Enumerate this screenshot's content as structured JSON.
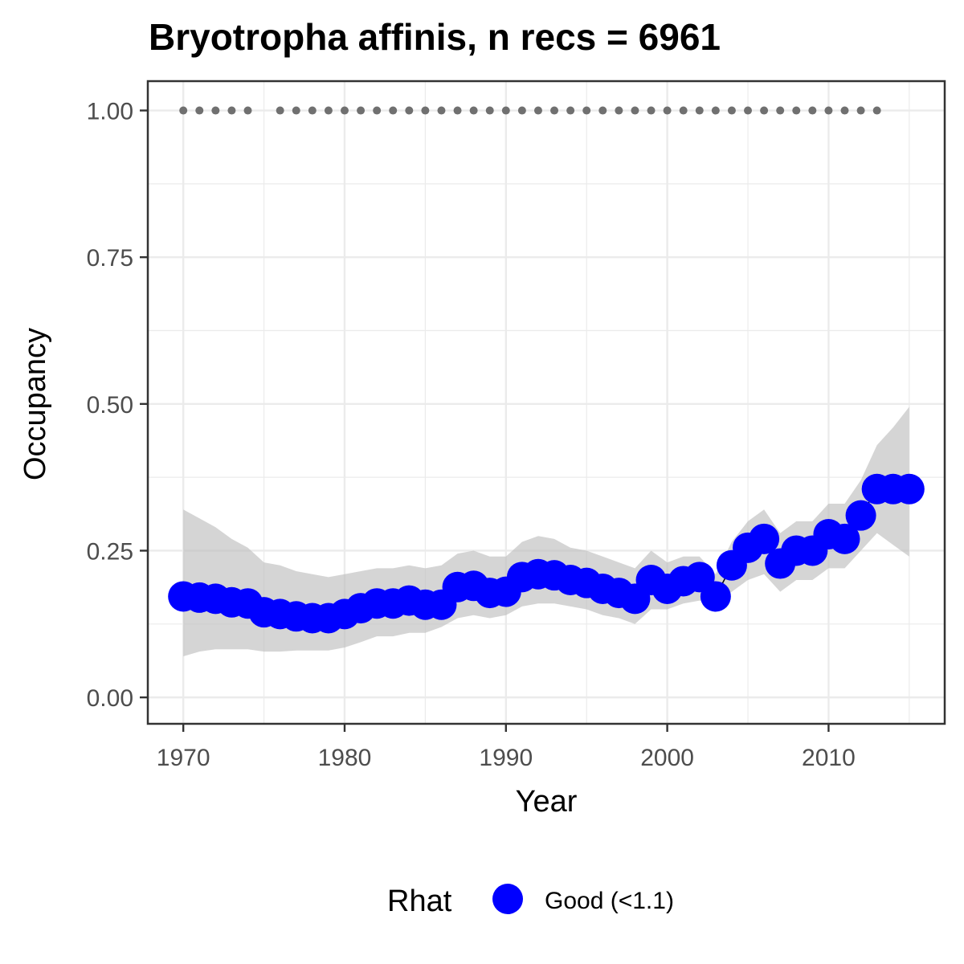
{
  "chart_data": {
    "type": "scatter",
    "title": "Bryotropha affinis, n recs = 6961",
    "xlabel": "Year",
    "ylabel": "Occupancy",
    "xlim": [
      1967.8,
      2017.2
    ],
    "ylim": [
      -0.045,
      1.05
    ],
    "x_ticks": [
      1970,
      1980,
      1990,
      2000,
      2010
    ],
    "x_tick_labels": [
      "1970",
      "1980",
      "1990",
      "2000",
      "2010"
    ],
    "y_ticks": [
      0,
      0.25,
      0.5,
      0.75,
      1.0
    ],
    "y_tick_labels": [
      "0.00",
      "0.25",
      "0.50",
      "0.75",
      "1.00"
    ],
    "grid": true,
    "legend": {
      "title": "Rhat",
      "placement": "bottom",
      "entries": [
        {
          "label": "Good (<1.1)",
          "color": "#0000ff"
        }
      ]
    },
    "colors": {
      "points": "#0000ff",
      "ribbon": "#bebebe",
      "record_dots": "#707070",
      "grid": "#ebebeb",
      "panel_border": "#333333"
    },
    "series": [
      {
        "x": [
          1970,
          1971,
          1972,
          1973,
          1974,
          1975,
          1976,
          1977,
          1978,
          1979,
          1980,
          1981,
          1982,
          1983,
          1984,
          1985,
          1986,
          1987,
          1988,
          1989,
          1990,
          1991,
          1992,
          1993,
          1994,
          1995,
          1996,
          1997,
          1998,
          1999,
          2000,
          2001,
          2002,
          2003,
          2004,
          2005,
          2006,
          2007,
          2008,
          2009,
          2010,
          2011,
          2012,
          2013,
          2014,
          2015
        ],
        "y": [
          0.172,
          0.17,
          0.168,
          0.162,
          0.16,
          0.145,
          0.142,
          0.138,
          0.135,
          0.135,
          0.142,
          0.152,
          0.16,
          0.16,
          0.165,
          0.158,
          0.158,
          0.188,
          0.19,
          0.178,
          0.18,
          0.205,
          0.21,
          0.208,
          0.2,
          0.195,
          0.185,
          0.178,
          0.168,
          0.2,
          0.185,
          0.198,
          0.205,
          0.172,
          0.225,
          0.255,
          0.27,
          0.228,
          0.25,
          0.25,
          0.278,
          0.27,
          0.31,
          0.355,
          0.355,
          0.355
        ],
        "lower": [
          0.07,
          0.078,
          0.082,
          0.082,
          0.082,
          0.078,
          0.078,
          0.08,
          0.08,
          0.08,
          0.085,
          0.094,
          0.104,
          0.104,
          0.11,
          0.11,
          0.12,
          0.135,
          0.14,
          0.135,
          0.14,
          0.155,
          0.16,
          0.16,
          0.155,
          0.15,
          0.14,
          0.135,
          0.125,
          0.15,
          0.15,
          0.16,
          0.165,
          0.155,
          0.18,
          0.2,
          0.21,
          0.18,
          0.2,
          0.2,
          0.22,
          0.22,
          0.25,
          0.28,
          0.26,
          0.24
        ],
        "upper": [
          0.32,
          0.305,
          0.29,
          0.27,
          0.255,
          0.23,
          0.225,
          0.215,
          0.21,
          0.205,
          0.21,
          0.215,
          0.22,
          0.22,
          0.225,
          0.22,
          0.225,
          0.245,
          0.25,
          0.24,
          0.24,
          0.265,
          0.275,
          0.27,
          0.255,
          0.25,
          0.24,
          0.23,
          0.22,
          0.25,
          0.23,
          0.24,
          0.24,
          0.21,
          0.265,
          0.3,
          0.32,
          0.28,
          0.3,
          0.3,
          0.33,
          0.33,
          0.37,
          0.43,
          0.46,
          0.495
        ]
      }
    ],
    "record_years": [
      1970,
      1971,
      1972,
      1973,
      1974,
      1976,
      1977,
      1978,
      1979,
      1980,
      1981,
      1982,
      1983,
      1984,
      1985,
      1986,
      1987,
      1988,
      1989,
      1990,
      1991,
      1992,
      1993,
      1994,
      1995,
      1996,
      1997,
      1998,
      1999,
      2000,
      2001,
      2002,
      2003,
      2004,
      2005,
      2006,
      2007,
      2008,
      2009,
      2010,
      2011,
      2012,
      2013
    ],
    "record_value": 1.0
  }
}
